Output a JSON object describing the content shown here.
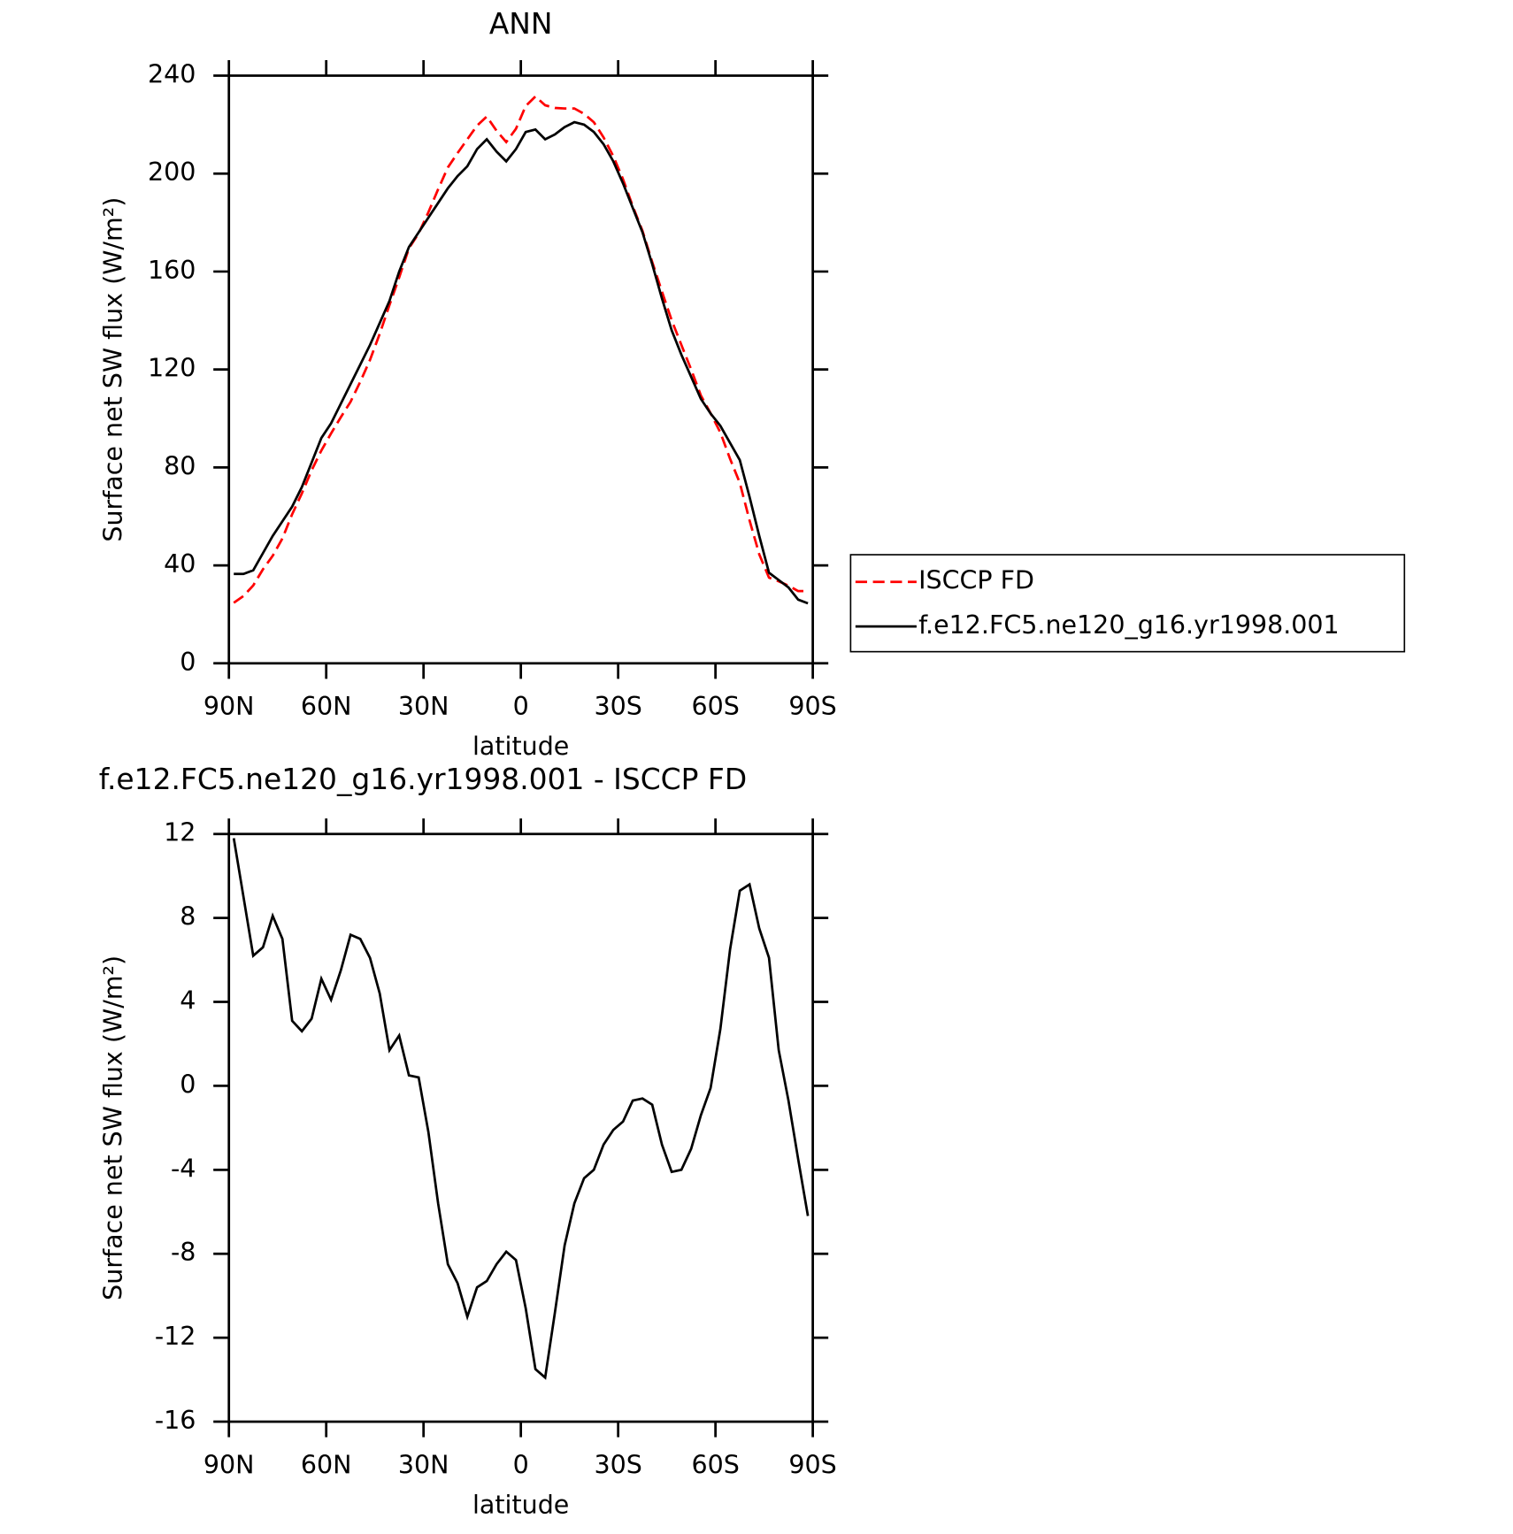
{
  "chart_data": [
    {
      "type": "line",
      "title": "ANN",
      "xlabel": "latitude",
      "ylabel": "Surface net SW flux (W/m²)",
      "x": [
        88.5,
        85.5,
        82.5,
        79.5,
        76.5,
        73.5,
        70.5,
        67.5,
        64.5,
        61.5,
        58.5,
        55.5,
        52.5,
        49.5,
        46.5,
        43.5,
        40.5,
        37.5,
        34.5,
        31.5,
        28.5,
        25.5,
        22.5,
        19.5,
        16.5,
        13.5,
        10.5,
        7.5,
        4.5,
        1.5,
        -1.5,
        -4.5,
        -7.5,
        -10.5,
        -13.5,
        -16.5,
        -19.5,
        -22.5,
        -25.5,
        -28.5,
        -31.5,
        -34.5,
        -37.5,
        -40.5,
        -43.5,
        -46.5,
        -49.5,
        -52.5,
        -55.5,
        -58.5,
        -61.5,
        -64.5,
        -67.5,
        -70.5,
        -73.5,
        -76.5,
        -79.5,
        -82.5,
        -85.5,
        -88.5
      ],
      "series": [
        {
          "name": "ISCCP FD",
          "color": "#ff0000",
          "linestyle": "dashed",
          "values": [
            24.7,
            27.5,
            31.8,
            38.4,
            43.9,
            51,
            60.9,
            69.4,
            78.8,
            86.9,
            93.9,
            100.5,
            106.8,
            115,
            123.9,
            134.6,
            146.3,
            157.6,
            169.5,
            175.6,
            184.2,
            193.6,
            202.5,
            208.4,
            214,
            219.6,
            223.3,
            217.5,
            212.9,
            218.3,
            227.6,
            231.5,
            227.9,
            226.8,
            226.6,
            226.6,
            224.4,
            221,
            214.8,
            207.1,
            197.7,
            186.7,
            176.6,
            163.9,
            151.8,
            140.1,
            130,
            120,
            109.4,
            102.1,
            94.3,
            83.5,
            73.7,
            58.4,
            44.5,
            35,
            33.5,
            31.7,
            29.5,
            29.5
          ]
        },
        {
          "name": "f.e12.FC5.ne120_g16.yr1998.001",
          "color": "#000000",
          "linestyle": "solid",
          "values": [
            36.5,
            36.5,
            38,
            45,
            52,
            58,
            64,
            72,
            82,
            92,
            98,
            106,
            114,
            122,
            130,
            139,
            148,
            160,
            170,
            176,
            182,
            188,
            194,
            199,
            203,
            210,
            214,
            209,
            205,
            210,
            217,
            218,
            214,
            216,
            219,
            221,
            220,
            217,
            212,
            205,
            196,
            186,
            176,
            163,
            149,
            136,
            126,
            117,
            108,
            102,
            97,
            90,
            83,
            68,
            52,
            37,
            34,
            31,
            26,
            24.5
          ]
        }
      ],
      "xlim": [
        90,
        -90
      ],
      "xticks": [
        {
          "value": 90,
          "label": "90N"
        },
        {
          "value": 60,
          "label": "60N"
        },
        {
          "value": 30,
          "label": "30N"
        },
        0,
        {
          "value": -30,
          "label": "30S"
        },
        {
          "value": -60,
          "label": "60S"
        },
        {
          "value": -90,
          "label": "90S"
        }
      ],
      "ylim": [
        0,
        240
      ],
      "yticks": [
        0,
        40,
        80,
        120,
        160,
        200,
        240
      ],
      "legend": "outside-right"
    },
    {
      "type": "line",
      "title": "f.e12.FC5.ne120_g16.yr1998.001 - ISCCP FD",
      "xlabel": "latitude",
      "ylabel": "Surface net SW flux (W/m²)",
      "x": [
        88.5,
        85.5,
        82.5,
        79.5,
        76.5,
        73.5,
        70.5,
        67.5,
        64.5,
        61.5,
        58.5,
        55.5,
        52.5,
        49.5,
        46.5,
        43.5,
        40.5,
        37.5,
        34.5,
        31.5,
        28.5,
        25.5,
        22.5,
        19.5,
        16.5,
        13.5,
        10.5,
        7.5,
        4.5,
        1.5,
        -1.5,
        -4.5,
        -7.5,
        -10.5,
        -13.5,
        -16.5,
        -19.5,
        -22.5,
        -25.5,
        -28.5,
        -31.5,
        -34.5,
        -37.5,
        -40.5,
        -43.5,
        -46.5,
        -49.5,
        -52.5,
        -55.5,
        -58.5,
        -61.5,
        -64.5,
        -67.5,
        -70.5,
        -73.5,
        -76.5,
        -79.5,
        -82.5,
        -85.5,
        -88.5
      ],
      "series": [
        {
          "color": "#000000",
          "linestyle": "solid",
          "values": [
            11.8,
            9,
            6.2,
            6.6,
            8.1,
            7,
            3.1,
            2.6,
            3.2,
            5.1,
            4.1,
            5.5,
            7.2,
            7,
            6.1,
            4.4,
            1.7,
            2.4,
            0.5,
            0.4,
            -2.2,
            -5.6,
            -8.5,
            -9.4,
            -11,
            -9.6,
            -9.3,
            -8.5,
            -7.9,
            -8.3,
            -10.6,
            -13.5,
            -13.9,
            -10.8,
            -7.6,
            -5.6,
            -4.4,
            -4,
            -2.8,
            -2.1,
            -1.7,
            -0.7,
            -0.6,
            -0.9,
            -2.8,
            -4.1,
            -4,
            -3,
            -1.4,
            -0.1,
            2.7,
            6.5,
            9.3,
            9.6,
            7.5,
            6.1,
            1.7,
            -0.7,
            -3.5,
            -6.2
          ]
        }
      ],
      "xlim": [
        90,
        -90
      ],
      "xticks": [
        {
          "value": 90,
          "label": "90N"
        },
        {
          "value": 60,
          "label": "60N"
        },
        {
          "value": 30,
          "label": "30N"
        },
        0,
        {
          "value": -30,
          "label": "30S"
        },
        {
          "value": -60,
          "label": "60S"
        },
        {
          "value": -90,
          "label": "90S"
        }
      ],
      "ylim": [
        -16,
        12
      ],
      "yticks": [
        -16,
        -12,
        -8,
        -4,
        0,
        4,
        8,
        12
      ]
    }
  ]
}
